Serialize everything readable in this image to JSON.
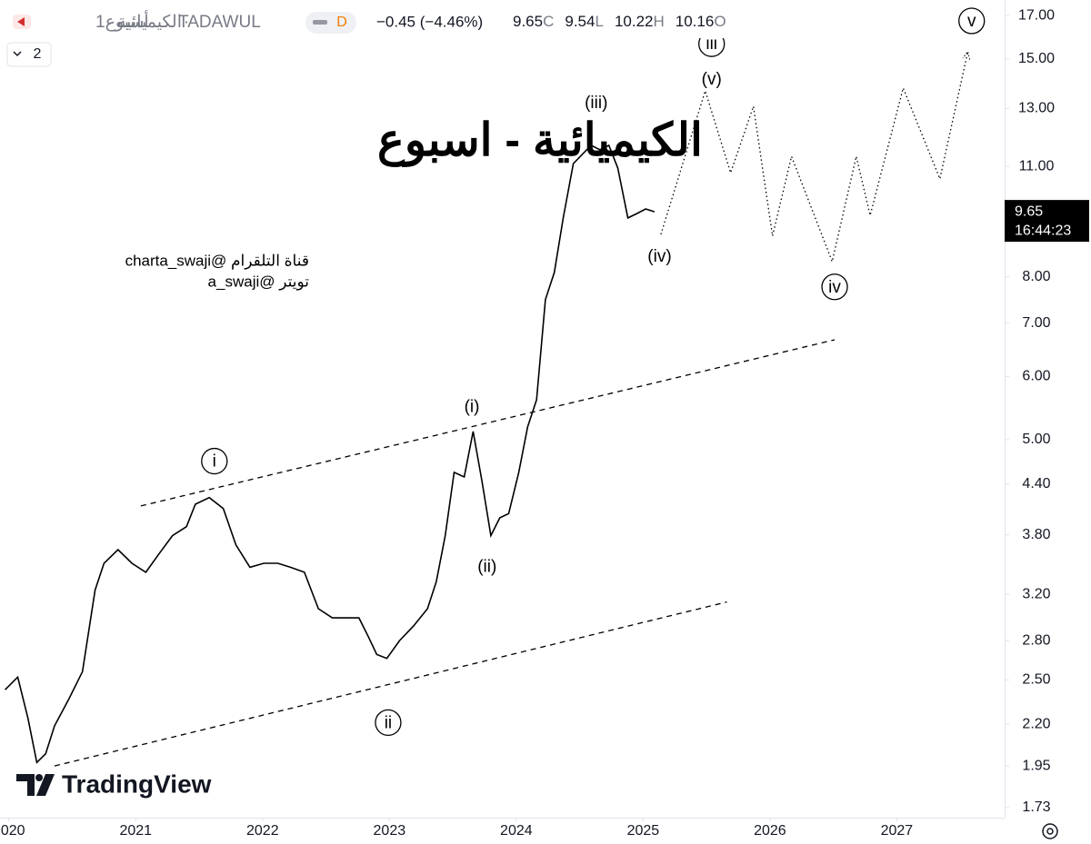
{
  "header": {
    "symbol": "الكيميائية",
    "interval": "1أسبوع",
    "exchange": "TADAWUL",
    "badge": "D",
    "change": "−0.45 (−4.46%)",
    "close": 9.65,
    "close_key": "C",
    "low": 9.54,
    "low_key": "L",
    "high": 10.22,
    "high_key": "H",
    "open": 10.16,
    "open_key": "O",
    "layers": "2"
  },
  "chart_data": {
    "type": "line",
    "title": "الكيميائية - اسبوع",
    "notes": [
      "charta_swaji@ قناة التلقرام",
      "a_swaji@ تويتر"
    ],
    "log_scale": true,
    "grid": false,
    "xlim": [
      2019.93,
      2027.85
    ],
    "xticks": [
      2020,
      2021,
      2022,
      2023,
      2024,
      2025,
      2026,
      2027
    ],
    "ylim": [
      1.68,
      17.78
    ],
    "yticks": [
      1.73,
      1.95,
      {
        "value": 2.2,
        "label": "2.20"
      },
      {
        "value": 2.5,
        "label": "2.50"
      },
      {
        "value": 2.8,
        "label": "2.80"
      },
      {
        "value": 3.2,
        "label": "3.20"
      },
      {
        "value": 3.8,
        "label": "3.80"
      },
      {
        "value": 4.4,
        "label": "4.40"
      },
      {
        "value": 5,
        "label": "5.00"
      },
      {
        "value": 6,
        "label": "6.00"
      },
      {
        "value": 7,
        "label": "7.00"
      },
      {
        "value": 8,
        "label": "8.00"
      },
      {
        "value": 11,
        "label": "11.00"
      },
      {
        "value": 13,
        "label": "13.00"
      },
      {
        "value": 15,
        "label": "15.00"
      },
      {
        "value": 17,
        "label": "17.00"
      }
    ],
    "series": [
      {
        "color": "#000000",
        "style": "solid",
        "x": [
          2019.97,
          2020.07,
          2020.15,
          2020.22,
          2020.29,
          2020.36,
          2020.47,
          2020.58,
          2020.68,
          2020.75,
          2020.86,
          2020.97,
          2021.08,
          2021.18,
          2021.29,
          2021.4,
          2021.47,
          2021.58,
          2021.69,
          2021.79,
          2021.9,
          2022.01,
          2022.12,
          2022.22,
          2022.33,
          2022.44,
          2022.55,
          2022.65,
          2022.76,
          2022.83,
          2022.9,
          2022.98,
          2023.08,
          2023.19,
          2023.3,
          2023.37,
          2023.44,
          2023.51,
          2023.59,
          2023.66,
          2023.73,
          2023.8,
          2023.87,
          2023.94,
          2024.02,
          2024.09,
          2024.16,
          2024.23,
          2024.3,
          2024.37,
          2024.45,
          2024.52,
          2024.59,
          2024.66,
          2024.73,
          2024.8,
          2024.88,
          2024.95,
          2025.02,
          2025.09
        ],
        "values": [
          2.43,
          2.52,
          2.24,
          1.97,
          2.02,
          2.19,
          2.36,
          2.56,
          3.24,
          3.5,
          3.64,
          3.5,
          3.41,
          3.59,
          3.79,
          3.89,
          4.15,
          4.23,
          4.1,
          3.69,
          3.46,
          3.5,
          3.5,
          3.46,
          3.41,
          3.07,
          2.99,
          2.99,
          2.99,
          2.84,
          2.69,
          2.66,
          2.8,
          2.92,
          3.07,
          3.32,
          3.79,
          4.55,
          4.49,
          5.12,
          4.43,
          3.79,
          3.99,
          4.04,
          4.55,
          5.19,
          5.61,
          7.49,
          8.1,
          9.48,
          11.09,
          11.39,
          11.69,
          11.54,
          11.69,
          10.95,
          9.48,
          9.6,
          9.73,
          9.65
        ]
      },
      {
        "color": "#000000",
        "style": "dotted",
        "arrow": true,
        "x": [
          2025.14,
          2025.49,
          2025.69,
          2025.87,
          2026.02,
          2026.17,
          2026.49,
          2026.68,
          2026.79,
          2027.05,
          2027.34,
          2027.56
        ],
        "values": [
          9.04,
          13.68,
          10.8,
          13.08,
          9.0,
          11.32,
          8.36,
          11.32,
          9.55,
          13.79,
          10.61,
          15.32
        ]
      },
      {
        "color": "#000000",
        "style": "dashed",
        "x": [
          2021.04,
          2026.51
        ],
        "values": [
          4.13,
          6.67
        ]
      },
      {
        "color": "#000000",
        "style": "dashed",
        "x": [
          2020.36,
          2025.66
        ],
        "values": [
          1.95,
          3.13
        ]
      }
    ],
    "annotations": [
      {
        "text": "i",
        "x": 2021.62,
        "y": 4.7,
        "circled": true
      },
      {
        "text": "ii",
        "x": 2022.99,
        "y": 2.21,
        "circled": true
      },
      {
        "text": "(i)",
        "x": 2023.65,
        "y": 5.5,
        "circled": false
      },
      {
        "text": "(ii)",
        "x": 2023.77,
        "y": 3.47,
        "circled": false
      },
      {
        "text": "(iii)",
        "x": 2024.63,
        "y": 13.22,
        "circled": false
      },
      {
        "text": "(iv)",
        "x": 2025.13,
        "y": 8.49,
        "circled": false
      },
      {
        "text": "iii",
        "x": 2025.54,
        "y": 15.67,
        "circled": true
      },
      {
        "text": "(v)",
        "x": 2025.54,
        "y": 14.15,
        "circled": false
      },
      {
        "text": "iv",
        "x": 2026.51,
        "y": 7.77,
        "circled": true
      },
      {
        "text": "v",
        "x": 2027.59,
        "y": 16.74,
        "circled": true
      }
    ],
    "last_price": 9.65,
    "countdown": "16:44:23"
  },
  "logo": "TradingView"
}
